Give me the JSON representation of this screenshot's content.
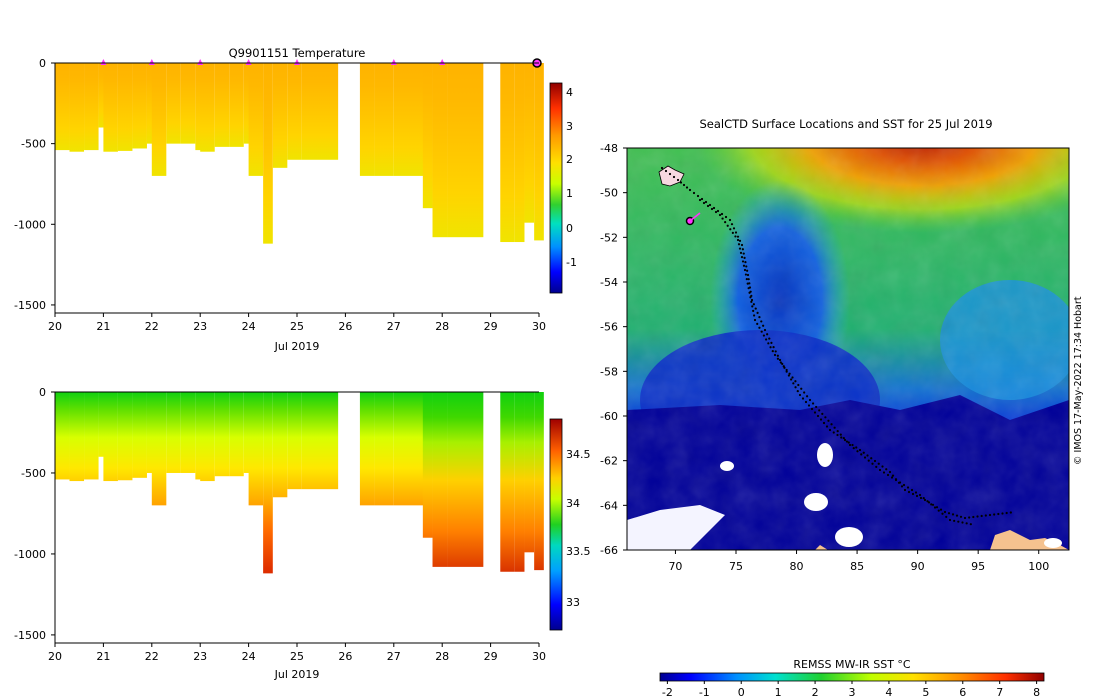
{
  "top_panel": {
    "title": "Q9901151  Temperature",
    "xlabel": "Jul 2019",
    "colorbar_ticks": [
      "4",
      "3",
      "2",
      "1",
      "0",
      "-1"
    ]
  },
  "bottom_panel": {
    "title": "",
    "xlabel": "Jul 2019",
    "colorbar_ticks": [
      "34.5",
      "34",
      "33.5",
      "33"
    ]
  },
  "map_panel": {
    "title": "SealCTD Surface Locations and SST for 25 Jul 2019",
    "colorbar_label": "REMSS MW-IR SST °C",
    "colorbar_ticks": [
      "-2",
      "-1",
      "0",
      "1",
      "2",
      "3",
      "4",
      "5",
      "6",
      "7",
      "8"
    ],
    "credit": "© IMOS 17-May-2022 17:34 Hobart"
  },
  "chart_data": [
    {
      "type": "heatmap",
      "title": "Q9901151  Temperature",
      "xlabel": "Jul 2019",
      "ylabel": "",
      "xlim": [
        20,
        30
      ],
      "ylim": [
        -1550,
        0
      ],
      "xticks": [
        "20",
        "21",
        "22",
        "23",
        "24",
        "25",
        "26",
        "27",
        "28",
        "29",
        "30"
      ],
      "yticks": [
        "0",
        "-500",
        "-1000",
        "-1500"
      ],
      "colorbar": {
        "range": [
          -1.8,
          4.4
        ],
        "ticks": [
          4,
          3,
          2,
          1,
          0,
          -1
        ]
      },
      "profiles": [
        {
          "t": 20.0,
          "depth": 540
        },
        {
          "t": 20.3,
          "depth": 550
        },
        {
          "t": 20.6,
          "depth": 540
        },
        {
          "t": 20.9,
          "depth": 400
        },
        {
          "t": 21.0,
          "depth": 550
        },
        {
          "t": 21.3,
          "depth": 545
        },
        {
          "t": 21.6,
          "depth": 530
        },
        {
          "t": 21.9,
          "depth": 500
        },
        {
          "t": 22.0,
          "depth": 700
        },
        {
          "t": 22.3,
          "depth": 500
        },
        {
          "t": 22.6,
          "depth": 500
        },
        {
          "t": 22.9,
          "depth": 540
        },
        {
          "t": 23.0,
          "depth": 550
        },
        {
          "t": 23.3,
          "depth": 520
        },
        {
          "t": 23.6,
          "depth": 520
        },
        {
          "t": 23.9,
          "depth": 500
        },
        {
          "t": 24.0,
          "depth": 700
        },
        {
          "t": 24.3,
          "depth": 1120
        },
        {
          "t": 24.5,
          "depth": 650
        },
        {
          "t": 24.8,
          "depth": 600
        },
        {
          "t": 25.1,
          "depth": 600
        },
        {
          "t": 26.3,
          "depth": 700
        },
        {
          "t": 26.6,
          "depth": 700
        },
        {
          "t": 27.0,
          "depth": 700
        },
        {
          "t": 27.6,
          "depth": 900
        },
        {
          "t": 27.8,
          "depth": 1080
        },
        {
          "t": 28.1,
          "depth": 1080
        },
        {
          "t": 29.2,
          "depth": 1110
        },
        {
          "t": 29.5,
          "depth": 1110
        },
        {
          "t": 29.7,
          "depth": 990
        },
        {
          "t": 29.9,
          "depth": 1100
        }
      ],
      "surface_markers_day": [
        21,
        22,
        23,
        24,
        25,
        27,
        28
      ]
    },
    {
      "type": "heatmap",
      "title": "",
      "xlabel": "Jul 2019",
      "ylabel": "",
      "xlim": [
        20,
        30
      ],
      "ylim": [
        -1550,
        0
      ],
      "xticks": [
        "20",
        "21",
        "22",
        "23",
        "24",
        "25",
        "26",
        "27",
        "28",
        "29",
        "30"
      ],
      "yticks": [
        "0",
        "-500",
        "-1000",
        "-1500"
      ],
      "colorbar": {
        "range": [
          32.7,
          34.85
        ],
        "ticks": [
          34.5,
          34,
          33.5,
          33
        ]
      },
      "profiles": "same casts as temperature panel"
    },
    {
      "type": "heatmap",
      "title": "SealCTD Surface Locations and SST for 25 Jul 2019",
      "xlabel": "",
      "ylabel": "",
      "xlim": [
        66,
        102.5
      ],
      "ylim": [
        -66,
        -48
      ],
      "xticks": [
        "70",
        "75",
        "80",
        "85",
        "90",
        "95",
        "100"
      ],
      "yticks": [
        "-48",
        "-50",
        "-52",
        "-54",
        "-56",
        "-58",
        "-60",
        "-62",
        "-64",
        "-66"
      ],
      "colorbar": {
        "label": "REMSS MW-IR SST °C",
        "range": [
          -2.2,
          8.2
        ],
        "ticks": [
          -2,
          -1,
          0,
          1,
          2,
          3,
          4,
          5,
          6,
          7,
          8
        ]
      },
      "track_end": {
        "lon": 71.1,
        "lat": -51.4
      }
    }
  ],
  "colors": {
    "marker": "#ff33ff",
    "ice_mask": "#000099",
    "land": "#f5c28f"
  }
}
